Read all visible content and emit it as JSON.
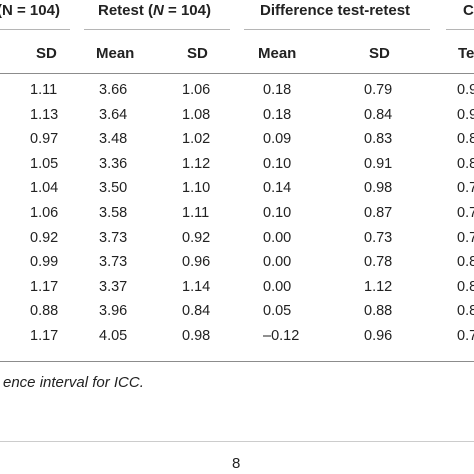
{
  "header": {
    "group1": "N = 104)",
    "group2_pre": "Retest (",
    "group2_n": "N",
    "group2_post": " = 104)",
    "group3": "Difference test-retest",
    "group4": "C"
  },
  "subheader": {
    "sd1": "SD",
    "mean2": "Mean",
    "sd2": "SD",
    "mean3": "Mean",
    "sd3": "SD",
    "te": "Te"
  },
  "rows": [
    [
      "1.11",
      "3.66",
      "1.06",
      "0.18",
      "0.79",
      "0.9"
    ],
    [
      "1.13",
      "3.64",
      "1.08",
      "0.18",
      "0.84",
      "0.9"
    ],
    [
      "0.97",
      "3.48",
      "1.02",
      "0.09",
      "0.83",
      "0.8"
    ],
    [
      "1.05",
      "3.36",
      "1.12",
      "0.10",
      "0.91",
      "0.8"
    ],
    [
      "1.04",
      "3.50",
      "1.10",
      "0.14",
      "0.98",
      "0.7"
    ],
    [
      "1.06",
      "3.58",
      "1.11",
      "0.10",
      "0.87",
      "0.7"
    ],
    [
      "0.92",
      "3.73",
      "0.92",
      "0.00",
      "0.73",
      "0.7"
    ],
    [
      "0.99",
      "3.73",
      "0.96",
      "0.00",
      "0.78",
      "0.8"
    ],
    [
      "1.17",
      "3.37",
      "1.14",
      "0.00",
      "1.12",
      "0.8"
    ],
    [
      "0.88",
      "3.96",
      "0.84",
      "0.05",
      "0.88",
      "0.8"
    ],
    [
      "1.17",
      "4.05",
      "0.98",
      "–0.12",
      "0.96",
      "0.7"
    ]
  ],
  "footnote": "ence interval for ICC.",
  "page_number": "8"
}
